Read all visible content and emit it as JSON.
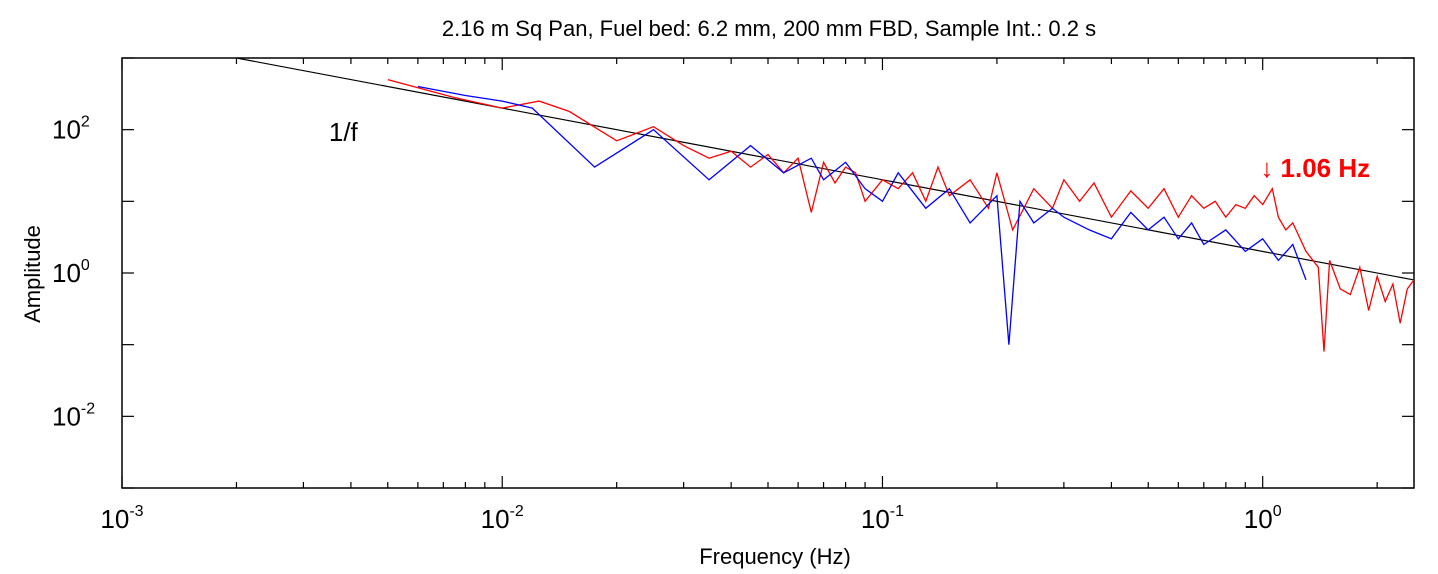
{
  "chart_data": {
    "type": "line",
    "title": "2.16 m Sq Pan, Fuel bed: 6.2 mm, 200 mm FBD, Sample Int.: 0.2 s",
    "xlabel": "Frequency (Hz)",
    "ylabel": "Amplitude",
    "xscale": "log",
    "yscale": "log",
    "xlim": [
      0.001,
      2.5
    ],
    "ylim": [
      0.001,
      1000
    ],
    "grid": false,
    "x_ticks": [
      {
        "base": "10",
        "exp": "-3",
        "value": 0.001
      },
      {
        "base": "10",
        "exp": "-2",
        "value": 0.01
      },
      {
        "base": "10",
        "exp": "-1",
        "value": 0.1
      },
      {
        "base": "10",
        "exp": "0",
        "value": 1
      }
    ],
    "y_ticks": [
      {
        "base": "10",
        "exp": "2",
        "value": 100
      },
      {
        "base": "10",
        "exp": "0",
        "value": 1
      },
      {
        "base": "10",
        "exp": "-2",
        "value": 0.01
      }
    ],
    "reference_line": {
      "label": "1/f",
      "color": "#000000",
      "points": [
        [
          0.002,
          1000
        ],
        [
          2.5,
          0.8
        ]
      ]
    },
    "series": [
      {
        "color": "#ff0000",
        "x": [
          0.005,
          0.0075,
          0.01,
          0.0125,
          0.015,
          0.02,
          0.025,
          0.03,
          0.035,
          0.04,
          0.045,
          0.05,
          0.055,
          0.06,
          0.065,
          0.07,
          0.075,
          0.08,
          0.085,
          0.09,
          0.1,
          0.11,
          0.12,
          0.13,
          0.14,
          0.15,
          0.17,
          0.19,
          0.2,
          0.22,
          0.25,
          0.28,
          0.3,
          0.33,
          0.36,
          0.4,
          0.45,
          0.5,
          0.55,
          0.6,
          0.65,
          0.7,
          0.75,
          0.8,
          0.85,
          0.9,
          0.95,
          1.0,
          1.06,
          1.1,
          1.15,
          1.2,
          1.3,
          1.4,
          1.45,
          1.5,
          1.6,
          1.7,
          1.8,
          1.9,
          2.0,
          2.1,
          2.2,
          2.3,
          2.4,
          2.5
        ],
        "y": [
          500,
          280,
          200,
          250,
          180,
          70,
          110,
          60,
          40,
          50,
          30,
          45,
          25,
          40,
          7,
          35,
          18,
          30,
          25,
          10,
          20,
          15,
          25,
          10,
          30,
          12,
          20,
          8,
          25,
          4,
          15,
          8,
          20,
          10,
          18,
          6,
          14,
          8,
          15,
          6,
          12,
          8,
          10,
          6,
          9,
          8,
          12,
          9,
          15,
          6,
          4,
          5,
          2,
          1.2,
          0.08,
          1.5,
          0.6,
          0.5,
          1.2,
          0.3,
          0.9,
          0.4,
          0.7,
          0.2,
          0.6,
          0.8
        ]
      },
      {
        "color": "#0000ff",
        "x": [
          0.006,
          0.008,
          0.01,
          0.012,
          0.0175,
          0.025,
          0.035,
          0.045,
          0.055,
          0.065,
          0.07,
          0.08,
          0.09,
          0.1,
          0.11,
          0.13,
          0.15,
          0.17,
          0.2,
          0.215,
          0.23,
          0.25,
          0.28,
          0.3,
          0.35,
          0.4,
          0.45,
          0.5,
          0.55,
          0.6,
          0.65,
          0.7,
          0.8,
          0.9,
          1.0,
          1.1,
          1.2,
          1.3
        ],
        "y": [
          400,
          300,
          250,
          200,
          30,
          100,
          20,
          60,
          25,
          40,
          20,
          35,
          15,
          10,
          25,
          8,
          15,
          5,
          12,
          0.1,
          10,
          5,
          8,
          6,
          4,
          3,
          7,
          4,
          6,
          3,
          5,
          2.5,
          4,
          2,
          3,
          1.5,
          2.5,
          0.8
        ]
      }
    ],
    "annotations": [
      {
        "text": "1/f",
        "color": "#000000",
        "x": 0.0035,
        "y": 70
      },
      {
        "text": "↓ 1.06 Hz",
        "color": "#ff0000",
        "x": 1.06,
        "y": 25
      }
    ]
  }
}
